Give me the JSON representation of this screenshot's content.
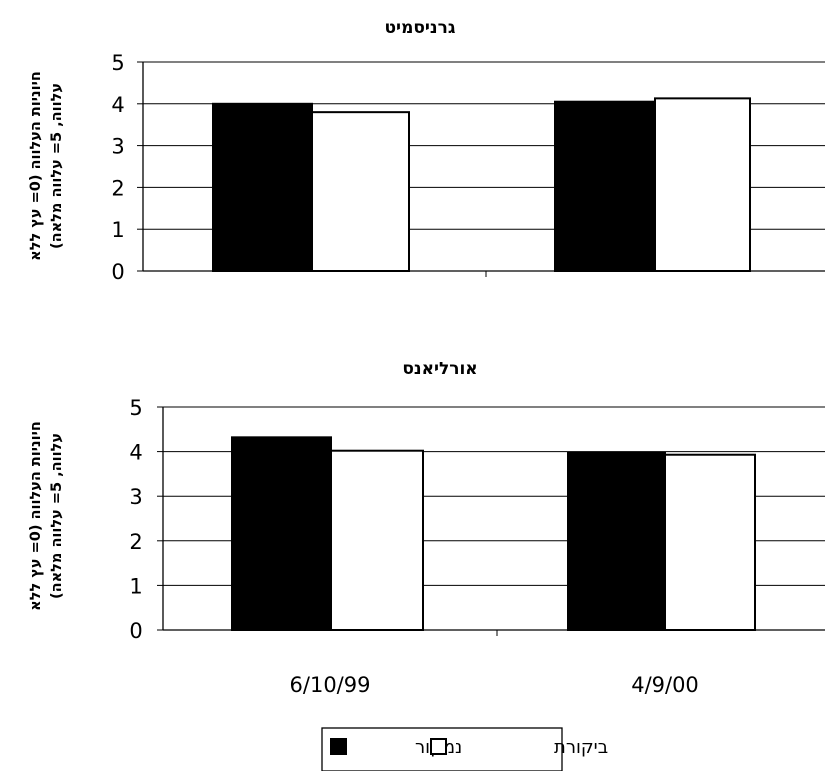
{
  "chart_data": [
    {
      "type": "bar",
      "title": "גרניסמיט",
      "ylabel": "חיוניות העלווה (0= עץ ללא\nעלווה, 5= עלווה מלאה)",
      "xlabel": "",
      "ylim": [
        0,
        5
      ],
      "yticks": [
        0,
        1,
        2,
        3,
        4,
        5
      ],
      "grid": true,
      "show_category_labels": false,
      "categories": [
        "6/10/99",
        "4/9/00"
      ],
      "series": [
        {
          "name": "נמקור",
          "color": "#000000",
          "values": [
            4.0,
            4.05
          ]
        },
        {
          "name": "ביקורת",
          "color": "#ffffff",
          "values": [
            3.8,
            4.13
          ]
        }
      ]
    },
    {
      "type": "bar",
      "title": "אורליאנס",
      "ylabel": "חיוניות העלווה (0= עץ ללא\nעלווה, 5= עלווה מלאה)",
      "xlabel": "",
      "ylim": [
        0,
        5
      ],
      "yticks": [
        0,
        1,
        2,
        3,
        4,
        5
      ],
      "grid": true,
      "show_category_labels": true,
      "categories": [
        "6/10/99",
        "4/9/00"
      ],
      "series": [
        {
          "name": "נמקור",
          "color": "#000000",
          "values": [
            4.32,
            3.97
          ]
        },
        {
          "name": "ביקורת",
          "color": "#ffffff",
          "values": [
            4.02,
            3.93
          ]
        }
      ]
    }
  ],
  "legend": {
    "placement": "bottom",
    "items": [
      {
        "label": "נמקור",
        "color": "#000000"
      },
      {
        "label": "ביקורת",
        "color": "#ffffff"
      }
    ]
  }
}
